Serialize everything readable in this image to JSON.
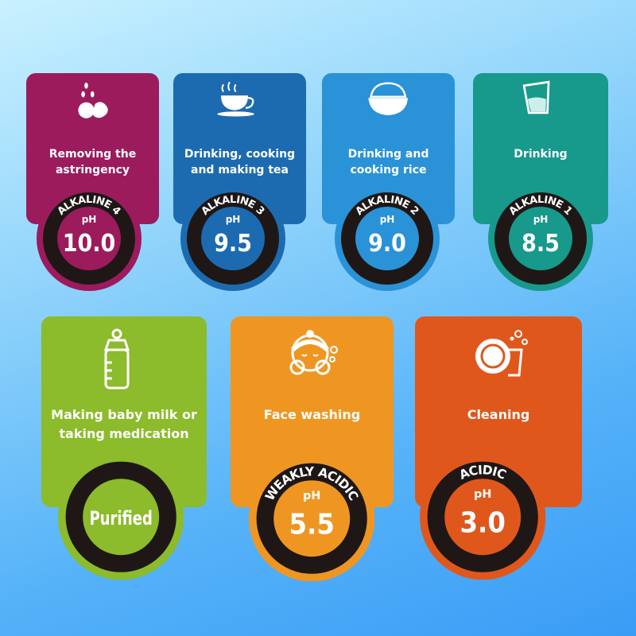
{
  "cards": [
    {
      "label": "Removing the\nastringency",
      "category": "ALKALINE 4",
      "ph_label": "pH",
      "value": "10.0",
      "color": "#9b1b5c",
      "icon": "fruit-icon"
    },
    {
      "label": "Drinking, cooking\nand making tea",
      "category": "ALKALINE 3",
      "ph_label": "pH",
      "value": "9.5",
      "color": "#1c6bb1",
      "icon": "tea-cup-icon"
    },
    {
      "label": "Drinking and\ncooking rice",
      "category": "ALKALINE 2",
      "ph_label": "pH",
      "value": "9.0",
      "color": "#2a92d7",
      "icon": "rice-bowl-icon"
    },
    {
      "label": "Drinking",
      "category": "ALKALINE 1",
      "ph_label": "pH",
      "value": "8.5",
      "color": "#17998c",
      "icon": "water-glass-icon"
    },
    {
      "label": "Making baby milk or\ntaking medication",
      "category": "",
      "ph_label": "",
      "value": "Purified",
      "color": "#8cbb2b",
      "icon": "baby-bottle-icon"
    },
    {
      "label": "Face washing",
      "category": "WEAKLY ACIDIC",
      "ph_label": "pH",
      "value": "5.5",
      "color": "#ef9622",
      "icon": "face-washing-icon"
    },
    {
      "label": "Cleaning",
      "category": "ACIDIC",
      "ph_label": "pH",
      "value": "3.0",
      "color": "#e0571c",
      "icon": "dishes-icon"
    }
  ]
}
